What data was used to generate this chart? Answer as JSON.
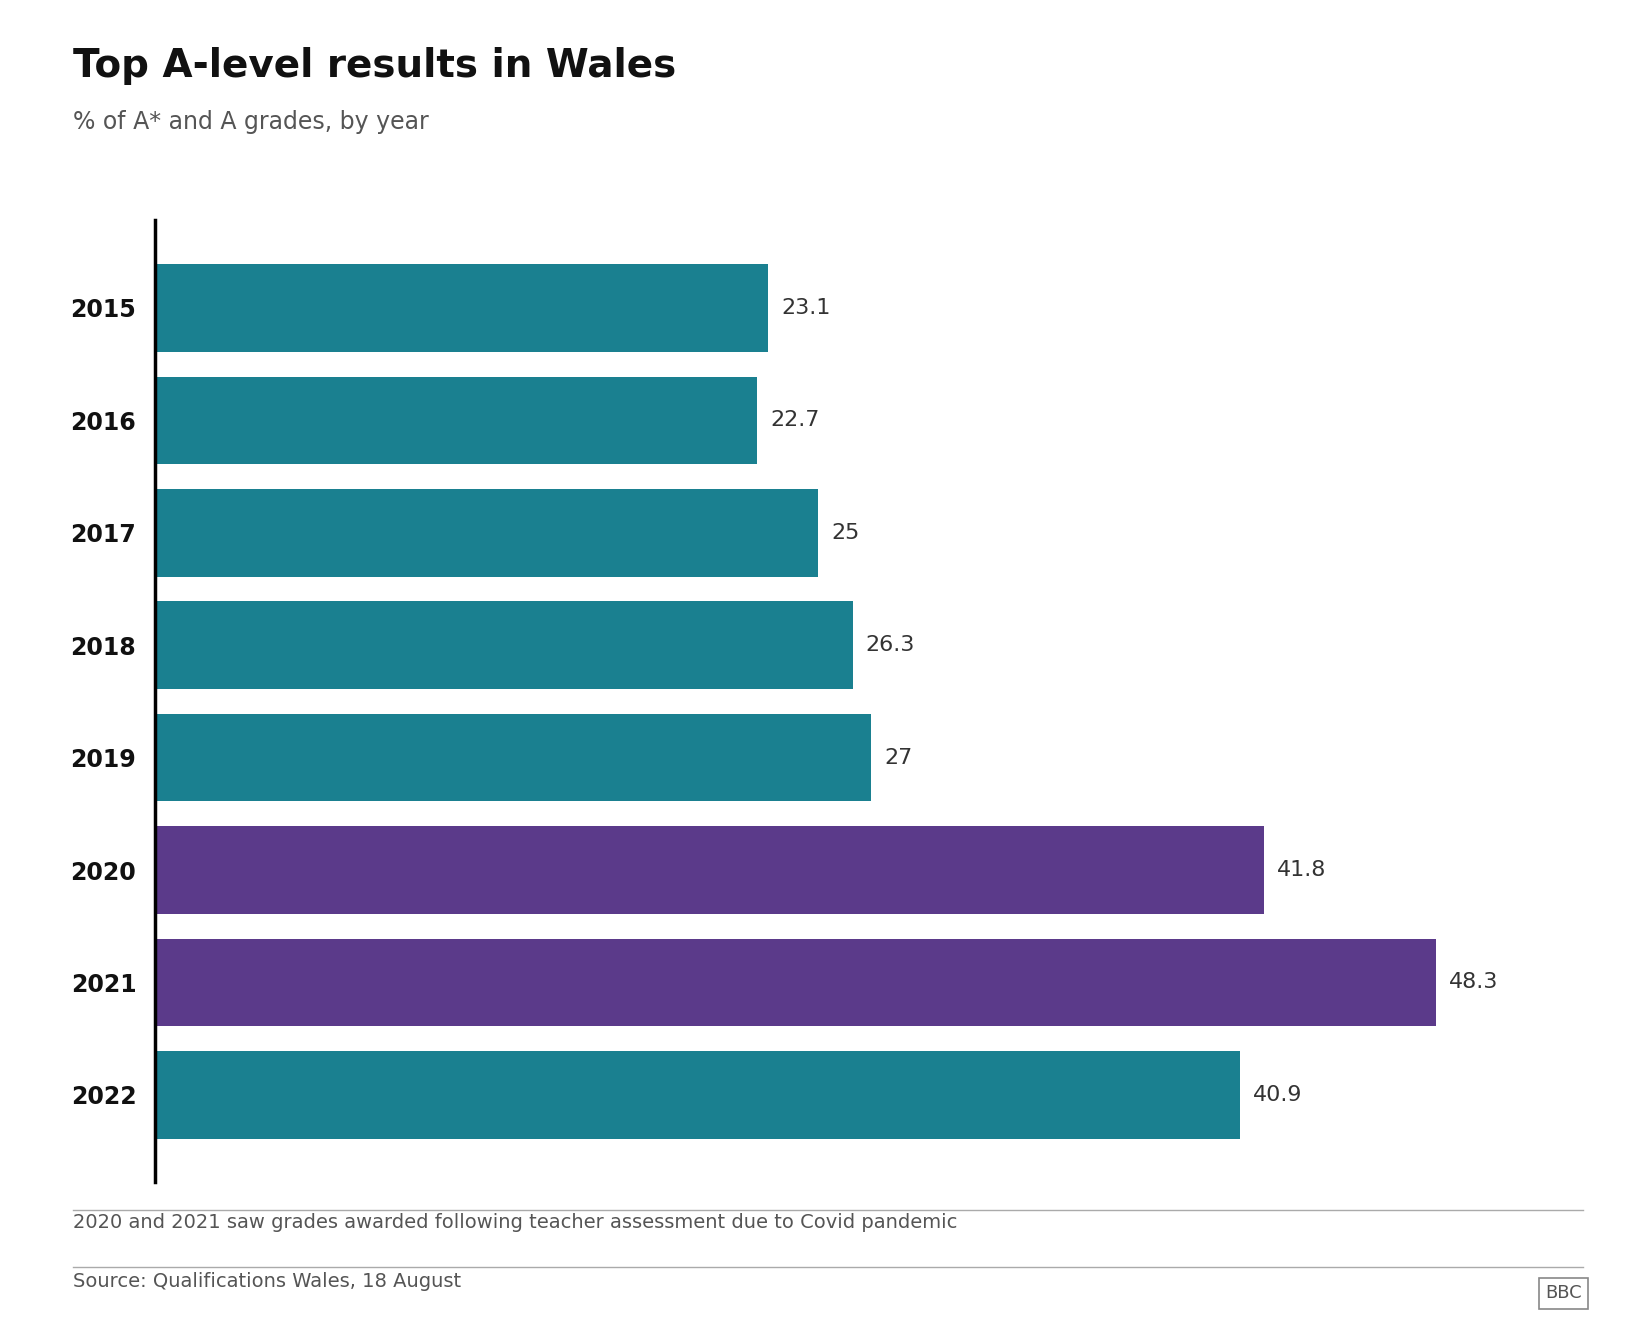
{
  "title": "Top A-level results in Wales",
  "subtitle": "% of A* and A grades, by year",
  "years": [
    "2015",
    "2016",
    "2017",
    "2018",
    "2019",
    "2020",
    "2021",
    "2022"
  ],
  "values": [
    23.1,
    22.7,
    25.0,
    26.3,
    27.0,
    41.8,
    48.3,
    40.9
  ],
  "bar_colors": [
    "#1a8090",
    "#1a8090",
    "#1a8090",
    "#1a8090",
    "#1a8090",
    "#5b3a8a",
    "#5b3a8a",
    "#1a8090"
  ],
  "label_values": [
    "23.1",
    "22.7",
    "25",
    "26.3",
    "27",
    "41.8",
    "48.3",
    "40.9"
  ],
  "xlim": [
    0,
    52
  ],
  "footer_note": "2020 and 2021 saw grades awarded following teacher assessment due to Covid pandemic",
  "source": "Source: Qualifications Wales, 18 August",
  "bbc_label": "BBC",
  "background_color": "#ffffff",
  "title_fontsize": 28,
  "subtitle_fontsize": 17,
  "label_fontsize": 16,
  "year_fontsize": 17,
  "footer_fontsize": 14,
  "bar_height": 0.78
}
